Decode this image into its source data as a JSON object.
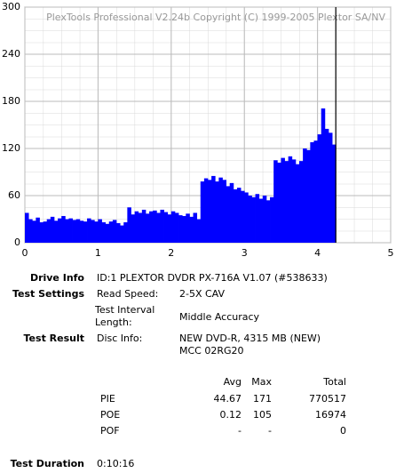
{
  "chart_data": {
    "type": "bar",
    "watermark": "PlexTools Professional V2.24b Copyright (C) 1999-2005 Plextor SA/NV",
    "x": [
      0,
      0.05,
      0.1,
      0.15,
      0.2,
      0.25,
      0.3,
      0.35,
      0.4,
      0.45,
      0.5,
      0.55,
      0.6,
      0.65,
      0.7,
      0.75,
      0.8,
      0.85,
      0.9,
      0.95,
      1,
      1.05,
      1.1,
      1.15,
      1.2,
      1.25,
      1.3,
      1.35,
      1.4,
      1.45,
      1.5,
      1.55,
      1.6,
      1.65,
      1.7,
      1.75,
      1.8,
      1.85,
      1.9,
      1.95,
      2,
      2.05,
      2.1,
      2.15,
      2.2,
      2.25,
      2.3,
      2.35,
      2.4,
      2.45,
      2.5,
      2.55,
      2.6,
      2.65,
      2.7,
      2.75,
      2.8,
      2.85,
      2.9,
      2.95,
      3,
      3.05,
      3.1,
      3.15,
      3.2,
      3.25,
      3.3,
      3.35,
      3.4,
      3.45,
      3.5,
      3.55,
      3.6,
      3.65,
      3.7,
      3.75,
      3.8,
      3.85,
      3.9,
      3.95,
      4,
      4.05,
      4.1,
      4.15,
      4.2
    ],
    "values": [
      38,
      30,
      28,
      32,
      26,
      27,
      30,
      33,
      28,
      31,
      34,
      30,
      31,
      29,
      30,
      28,
      27,
      31,
      29,
      27,
      30,
      26,
      24,
      27,
      29,
      25,
      22,
      26,
      45,
      36,
      40,
      38,
      42,
      37,
      40,
      41,
      38,
      42,
      39,
      36,
      40,
      38,
      35,
      34,
      37,
      33,
      38,
      30,
      78,
      82,
      80,
      85,
      78,
      83,
      80,
      72,
      76,
      68,
      70,
      66,
      64,
      60,
      58,
      62,
      56,
      60,
      54,
      58,
      105,
      102,
      108,
      104,
      110,
      106,
      100,
      104,
      120,
      118,
      128,
      130,
      138,
      171,
      145,
      140,
      125
    ],
    "color": "#0000ff",
    "xlim": [
      0,
      5
    ],
    "xticks": [
      0,
      1,
      2,
      3,
      4,
      5
    ],
    "ylim": [
      0,
      300
    ],
    "yticks": [
      0,
      60,
      120,
      180,
      240,
      300
    ],
    "grid": true
  },
  "info": {
    "drive_info": {
      "label": "Drive Info",
      "value": "ID:1 PLEXTOR DVDR PX-716A V1.07 (#538633)"
    },
    "test_settings": {
      "label": "Test Settings",
      "rows": [
        [
          "Read Speed:",
          "2-5X CAV"
        ],
        [
          "Test Interval Length:",
          "Middle Accuracy"
        ]
      ]
    },
    "test_result": {
      "label": "Test Result",
      "key": "Disc Info:",
      "lines": [
        "NEW DVD-R, 4315 MB (NEW)",
        "MCC 02RG20"
      ]
    },
    "stats": {
      "headers": [
        "Avg",
        "Max",
        "Total"
      ],
      "rows": [
        [
          "PIE",
          "44.67",
          "171",
          "770517"
        ],
        [
          "POE",
          "0.12",
          "105",
          "16974"
        ],
        [
          "POF",
          "-",
          "-",
          "0"
        ]
      ]
    },
    "test_duration": {
      "label": "Test Duration",
      "value": "0:10:16"
    }
  }
}
